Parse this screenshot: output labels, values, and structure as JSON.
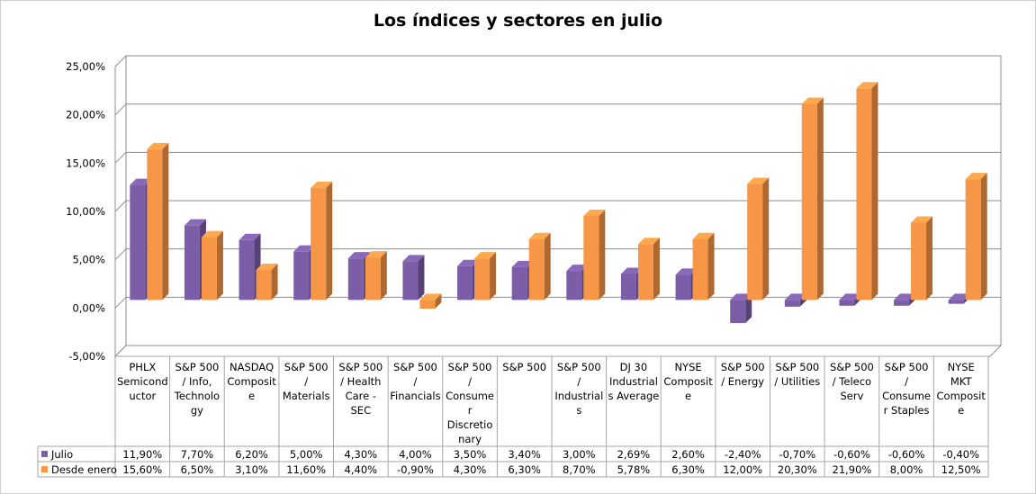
{
  "chart_data": {
    "type": "bar",
    "style": "3d-clustered-column-with-data-table",
    "title": "Los índices y sectores en julio",
    "ylim": [
      -0.05,
      0.25
    ],
    "yticks": [
      -0.05,
      0,
      0.05,
      0.1,
      0.15,
      0.2,
      0.25
    ],
    "ytick_labels": [
      "-5,00%",
      "0,00%",
      "5,00%",
      "10,00%",
      "15,00%",
      "20,00%",
      "25,00%"
    ],
    "categories": [
      [
        "PHLX",
        "Semicond",
        "uctor"
      ],
      [
        "S&P 500",
        "/ Info,",
        "Technolo",
        "gy"
      ],
      [
        "NASDAQ",
        "Composit",
        "e"
      ],
      [
        "S&P 500",
        "/",
        "Materials"
      ],
      [
        "S&P 500",
        "/ Health",
        "Care -",
        "SEC"
      ],
      [
        "S&P 500",
        "/",
        "Financials"
      ],
      [
        "S&P 500",
        "/",
        "Consume",
        "r",
        "Discretio",
        "nary"
      ],
      [
        "S&P 500"
      ],
      [
        "S&P 500",
        "/",
        "Industrial",
        "s"
      ],
      [
        "DJ 30",
        "Industrial",
        "s Average"
      ],
      [
        "NYSE",
        "Composit",
        "e"
      ],
      [
        "S&P 500",
        "/ Energy"
      ],
      [
        "S&P 500",
        "/ Utilities"
      ],
      [
        "S&P 500",
        "/ Teleco",
        "Serv"
      ],
      [
        "S&P 500",
        "/",
        "Consume",
        "r Staples"
      ],
      [
        "NYSE",
        "MKT",
        "Composit",
        "e"
      ]
    ],
    "series": [
      {
        "name": "Julio",
        "color": "#7b5ea7",
        "values": [
          0.119,
          0.077,
          0.062,
          0.05,
          0.043,
          0.04,
          0.035,
          0.034,
          0.03,
          0.0269,
          0.026,
          -0.024,
          -0.007,
          -0.006,
          -0.006,
          -0.004
        ],
        "labels": [
          "11,90%",
          "7,70%",
          "6,20%",
          "5,00%",
          "4,30%",
          "4,00%",
          "3,50%",
          "3,40%",
          "3,00%",
          "2,69%",
          "2,60%",
          "-2,40%",
          "-0,70%",
          "-0,60%",
          "-0,60%",
          "-0,40%"
        ]
      },
      {
        "name": "Desde enero",
        "color": "#f79646",
        "values": [
          0.156,
          0.065,
          0.031,
          0.116,
          0.044,
          -0.009,
          0.043,
          0.063,
          0.087,
          0.0578,
          0.063,
          0.12,
          0.203,
          0.219,
          0.08,
          0.125
        ],
        "labels": [
          "15,60%",
          "6,50%",
          "3,10%",
          "11,60%",
          "4,40%",
          "-0,90%",
          "4,30%",
          "6,30%",
          "8,70%",
          "5,78%",
          "6,30%",
          "12,00%",
          "20,30%",
          "21,90%",
          "8,00%",
          "12,50%"
        ]
      }
    ]
  }
}
